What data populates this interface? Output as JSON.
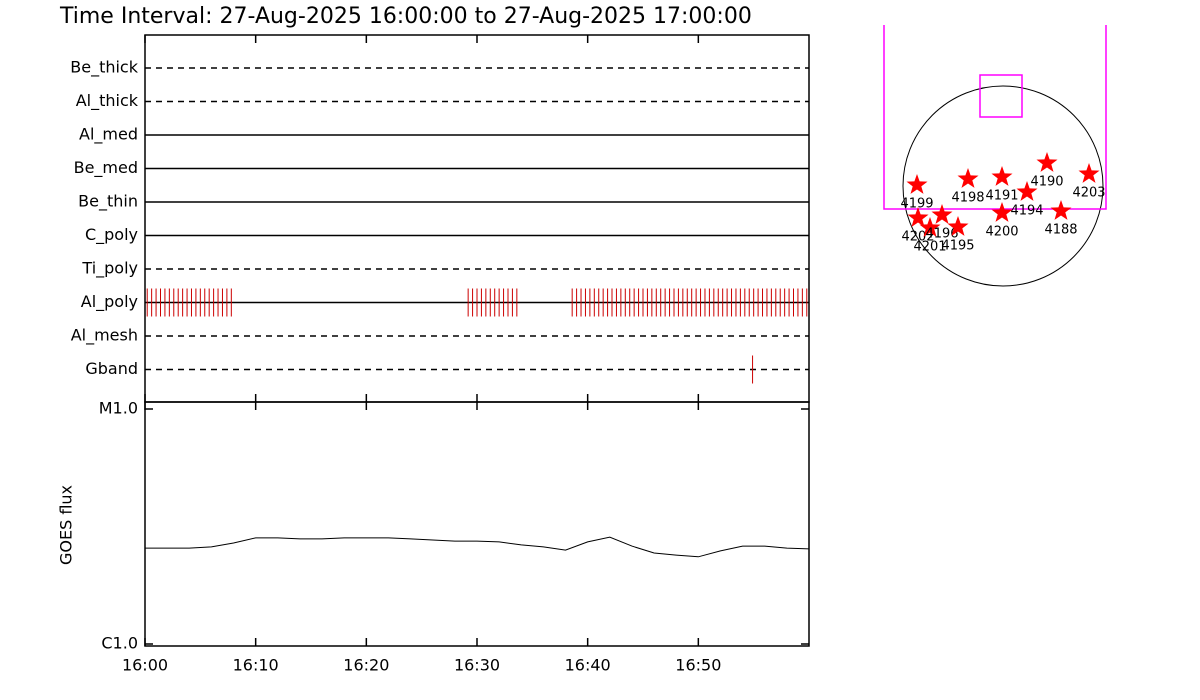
{
  "title": "Time Interval: 27-Aug-2025 16:00:00 to 27-Aug-2025 17:00:00",
  "chart_data": [
    {
      "type": "timeline",
      "categories": [
        "Be_thick",
        "Al_thick",
        "Al_med",
        "Be_med",
        "Be_thin",
        "C_poly",
        "Ti_poly",
        "Al_poly",
        "Al_mesh",
        "Gband"
      ],
      "dashed": [
        true,
        true,
        false,
        false,
        false,
        false,
        true,
        false,
        true,
        true
      ],
      "color": "#cc0000",
      "xlim": [
        0,
        60
      ],
      "values": [
        [],
        [],
        [],
        [],
        [],
        [],
        [],
        [
          0.2,
          0.6,
          1.0,
          1.4,
          1.8,
          2.2,
          2.6,
          3.0,
          3.4,
          3.8,
          4.2,
          4.6,
          5.0,
          5.4,
          5.8,
          6.2,
          6.6,
          7.0,
          7.4,
          7.8,
          29.2,
          29.6,
          30.0,
          30.4,
          30.8,
          31.2,
          31.6,
          32.0,
          32.4,
          32.8,
          33.2,
          33.6,
          38.6,
          39.0,
          39.4,
          39.8,
          40.2,
          40.6,
          41.0,
          41.4,
          41.8,
          42.2,
          42.6,
          43.0,
          43.4,
          43.8,
          44.2,
          44.6,
          45.0,
          45.4,
          45.8,
          46.2,
          46.6,
          47.0,
          47.4,
          47.8,
          48.2,
          48.6,
          49.0,
          49.4,
          49.8,
          50.2,
          50.6,
          51.0,
          51.4,
          51.8,
          52.2,
          52.6,
          53.0,
          53.4,
          53.8,
          54.2,
          54.6,
          55.0,
          55.4,
          55.8,
          56.2,
          56.6,
          57.0,
          57.4,
          57.8,
          58.2,
          58.6,
          59.0,
          59.4,
          59.8
        ],
        [],
        [
          54.9
        ]
      ]
    },
    {
      "type": "line",
      "y_label": "GOES flux",
      "log_y": true,
      "color": "#000000",
      "xlim": [
        0,
        60
      ],
      "xticks": [
        {
          "value": 0,
          "label": "16:00"
        },
        {
          "value": 10,
          "label": "16:10"
        },
        {
          "value": 20,
          "label": "16:20"
        },
        {
          "value": 30,
          "label": "16:30"
        },
        {
          "value": 40,
          "label": "16:40"
        },
        {
          "value": 50,
          "label": "16:50"
        }
      ],
      "ylim": [
        1e-06,
        1e-05
      ],
      "yticks": [
        {
          "value": 1e-06,
          "label": "C1.0"
        },
        {
          "value": 1e-05,
          "label": "M1.0"
        }
      ],
      "x": [
        0,
        2,
        4,
        6,
        8,
        10,
        12,
        14,
        16,
        18,
        20,
        22,
        24,
        26,
        28,
        30,
        32,
        34,
        36,
        38,
        40,
        42,
        44,
        46,
        48,
        50,
        52,
        54,
        56,
        58,
        60
      ],
      "values": [
        2.56e-06,
        2.56e-06,
        2.56e-06,
        2.59e-06,
        2.69e-06,
        2.83e-06,
        2.83e-06,
        2.8e-06,
        2.8e-06,
        2.83e-06,
        2.83e-06,
        2.83e-06,
        2.8e-06,
        2.77e-06,
        2.74e-06,
        2.74e-06,
        2.72e-06,
        2.64e-06,
        2.59e-06,
        2.51e-06,
        2.72e-06,
        2.85e-06,
        2.61e-06,
        2.44e-06,
        2.39e-06,
        2.35e-06,
        2.49e-06,
        2.61e-06,
        2.61e-06,
        2.56e-06,
        2.54e-06
      ]
    },
    {
      "type": "scatter",
      "color": "#ff0000",
      "box_color": "#ff00ff",
      "labels": [
        "4199",
        "4198",
        "4191",
        "4190",
        "4203",
        "4194",
        "4200",
        "4188",
        "4202",
        "4201",
        "4196",
        "4195"
      ],
      "x": [
        -0.86,
        -0.35,
        -0.01,
        0.44,
        0.86,
        0.24,
        -0.01,
        0.58,
        -0.85,
        -0.73,
        -0.61,
        -0.45
      ],
      "y": [
        0.01,
        0.07,
        0.09,
        0.23,
        0.12,
        -0.06,
        -0.27,
        -0.25,
        -0.32,
        -0.42,
        -0.29,
        -0.41
      ],
      "boxes": [
        {
          "xlim": [
            -1.19,
            1.03
          ],
          "ylim": [
            -0.23,
            1.61
          ]
        },
        {
          "xlim": [
            -0.23,
            0.19
          ],
          "ylim": [
            0.69,
            1.11
          ]
        }
      ]
    }
  ]
}
